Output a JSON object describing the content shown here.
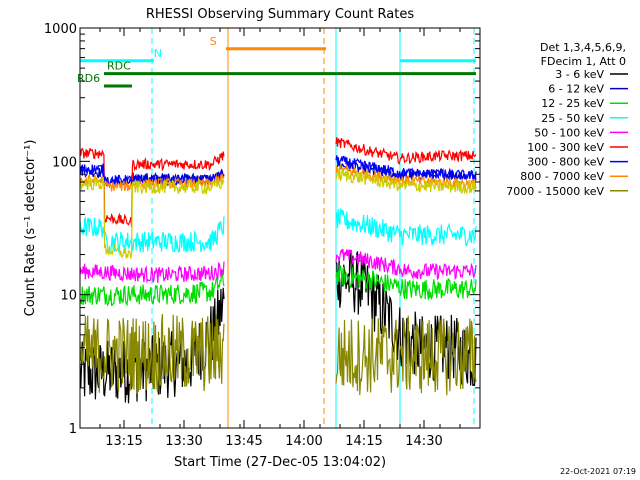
{
  "chart_data": {
    "type": "line",
    "title": "RHESSI Observing Summary Count Rates",
    "xlabel": "Start Time (27-Dec-05 13:04:02)",
    "ylabel": "Count Rate (s⁻¹ detector⁻¹)",
    "y_scale": "log",
    "ylim": [
      1,
      1000
    ],
    "xlim_minutes": [
      0,
      100
    ],
    "x_ticks": [
      {
        "label": "13:15",
        "minute": 11
      },
      {
        "label": "13:30",
        "minute": 26
      },
      {
        "label": "13:45",
        "minute": 41
      },
      {
        "label": "14:00",
        "minute": 56
      },
      {
        "label": "14:15",
        "minute": 71
      },
      {
        "label": "14:30",
        "minute": 86
      }
    ],
    "y_ticks": [
      {
        "label": "1",
        "value": 1
      },
      {
        "label": "10",
        "value": 10
      },
      {
        "label": "100",
        "value": 100
      },
      {
        "label": "1000",
        "value": 1000
      }
    ],
    "legend_header": [
      "Det 1,3,4,5,6,9,",
      "FDecim 1, Att 0"
    ],
    "legend_position": "right",
    "data_gap_minutes": [
      37,
      64
    ],
    "series": [
      {
        "name": "3 - 6 keV",
        "color": "#000000",
        "noise": 0.25,
        "segments": [
          [
            [
              0,
              2.5
            ],
            [
              18,
              2.8
            ],
            [
              28,
              3.2
            ],
            [
              34,
              5.5
            ],
            [
              36,
              9
            ]
          ],
          [
            [
              64,
              14
            ],
            [
              70,
              12
            ],
            [
              75,
              8
            ],
            [
              80,
              5
            ],
            [
              85,
              4
            ],
            [
              93,
              4
            ],
            [
              99,
              3.2
            ]
          ]
        ]
      },
      {
        "name": "6 - 12 keV",
        "color": "#0000cc",
        "noise": 0.04,
        "segments": [
          [
            [
              0,
              85
            ],
            [
              6,
              82
            ],
            [
              6.1,
              70
            ],
            [
              13,
              70
            ],
            [
              13.1,
              75
            ],
            [
              33,
              74
            ],
            [
              36,
              80
            ]
          ],
          [
            [
              64,
              95
            ],
            [
              70,
              88
            ],
            [
              80,
              78
            ],
            [
              90,
              80
            ],
            [
              99,
              78
            ]
          ]
        ]
      },
      {
        "name": "12 - 25 keV",
        "color": "#00dd00",
        "noise": 0.08,
        "segments": [
          [
            [
              0,
              10
            ],
            [
              20,
              10
            ],
            [
              33,
              10.5
            ],
            [
              36,
              13
            ]
          ],
          [
            [
              64,
              14
            ],
            [
              72,
              13
            ],
            [
              82,
              11
            ],
            [
              99,
              11
            ]
          ]
        ]
      },
      {
        "name": "25 - 50 keV",
        "color": "#00ffff",
        "noise": 0.08,
        "segments": [
          [
            [
              0,
              32
            ],
            [
              6,
              32
            ],
            [
              6.1,
              25
            ],
            [
              33,
              25
            ],
            [
              36,
              33
            ]
          ],
          [
            [
              64,
              37
            ],
            [
              72,
              33
            ],
            [
              80,
              28
            ],
            [
              99,
              28
            ]
          ]
        ]
      },
      {
        "name": "50 - 100 keV",
        "color": "#ff00ff",
        "noise": 0.06,
        "segments": [
          [
            [
              0,
              15
            ],
            [
              20,
              14
            ],
            [
              33,
              14.5
            ],
            [
              36,
              16
            ]
          ],
          [
            [
              64,
              20
            ],
            [
              72,
              18
            ],
            [
              82,
              15
            ],
            [
              99,
              15
            ]
          ]
        ]
      },
      {
        "name": "100 - 300 keV",
        "color": "#ff0000",
        "noise": 0.04,
        "segments": [
          [
            [
              0,
              115
            ],
            [
              6,
              115
            ],
            [
              6.1,
              38
            ],
            [
              13,
              35
            ],
            [
              13.1,
              95
            ],
            [
              33,
              95
            ],
            [
              36,
              112
            ]
          ],
          [
            [
              64,
              140
            ],
            [
              72,
              120
            ],
            [
              80,
              105
            ],
            [
              90,
              110
            ],
            [
              99,
              110
            ]
          ]
        ]
      },
      {
        "name": "300 - 800 keV",
        "color": "#0000ff",
        "noise": 0.04,
        "segments": [
          [
            [
              0,
              88
            ],
            [
              6,
              88
            ],
            [
              6.1,
              72
            ],
            [
              13,
              72
            ],
            [
              13.1,
              72
            ],
            [
              33,
              72
            ],
            [
              36,
              80
            ]
          ],
          [
            [
              64,
              102
            ],
            [
              72,
              92
            ],
            [
              80,
              82
            ],
            [
              99,
              78
            ]
          ]
        ]
      },
      {
        "name": "800 - 7000 keV",
        "color": "#ff8800",
        "noise": 0.04,
        "segments": [
          [
            [
              0,
              72
            ],
            [
              6,
              72
            ],
            [
              6.1,
              65
            ],
            [
              13,
              65
            ],
            [
              13.1,
              68
            ],
            [
              33,
              68
            ],
            [
              36,
              75
            ]
          ],
          [
            [
              64,
              88
            ],
            [
              72,
              80
            ],
            [
              80,
              72
            ],
            [
              99,
              68
            ]
          ]
        ]
      },
      {
        "name": "7000 - 15000 keV",
        "color": "#888800",
        "noise": 0.3,
        "segments": [
          [
            [
              0,
              3.6
            ],
            [
              33,
              3.6
            ],
            [
              36,
              4
            ]
          ],
          [
            [
              64,
              3.5
            ],
            [
              99,
              3.5
            ]
          ]
        ]
      }
    ],
    "extra_traces": [
      {
        "color": "#cccc00",
        "noise": 0.05,
        "segments": [
          [
            [
              0,
              68
            ],
            [
              6,
              68
            ],
            [
              6.1,
              22
            ],
            [
              13,
              20
            ],
            [
              13.1,
              64
            ],
            [
              33,
              64
            ],
            [
              36,
              70
            ]
          ],
          [
            [
              64,
              80
            ],
            [
              72,
              74
            ],
            [
              80,
              66
            ],
            [
              99,
              64
            ]
          ]
        ]
      }
    ],
    "flag_bars": [
      {
        "label": "N",
        "color": "#00ffff",
        "y_frac": 0.082,
        "ranges": [
          [
            0,
            18.5
          ],
          [
            80,
            99
          ]
        ],
        "label_minute": 19.2
      },
      {
        "label": "S",
        "color": "#ff8800",
        "y_frac": 0.052,
        "ranges": [
          [
            36.5,
            61.5
          ]
        ],
        "label_minute": 33.2
      },
      {
        "label": "RDC",
        "color": "#007700",
        "y_frac": 0.114,
        "ranges": [
          [
            6,
            12.5
          ],
          [
            12.5,
            99
          ]
        ],
        "label_minute": 7.5
      },
      {
        "label": "RD6",
        "color": "#007700",
        "y_frac": 0.145,
        "ranges": [
          [
            6,
            13
          ]
        ],
        "label_minute": 0
      }
    ],
    "vlines": [
      {
        "minute": 0,
        "color": "#00ffff",
        "style": "solid"
      },
      {
        "minute": 18,
        "color": "#00ffff",
        "style": "dashed"
      },
      {
        "minute": 37,
        "color": "#ff8800",
        "style": "solid"
      },
      {
        "minute": 61,
        "color": "#ff8800",
        "style": "dashed"
      },
      {
        "minute": 64,
        "color": "#00ffff",
        "style": "solid"
      },
      {
        "minute": 80,
        "color": "#00ffff",
        "style": "solid"
      },
      {
        "minute": 98.5,
        "color": "#00ffff",
        "style": "dashed"
      }
    ]
  },
  "footer_date": "22-Oct-2021 07:19"
}
